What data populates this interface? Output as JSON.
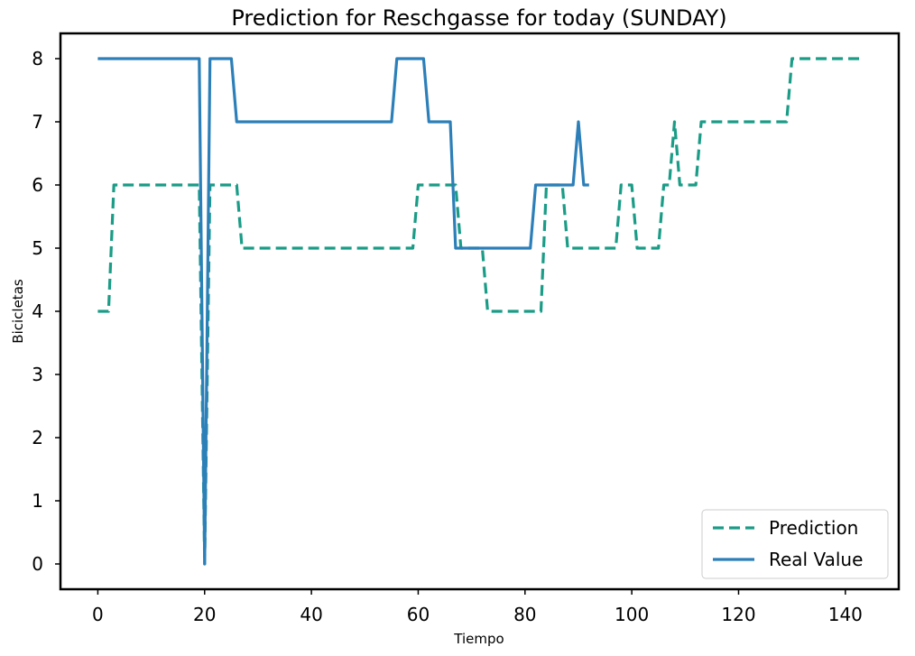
{
  "chart_data": {
    "type": "line",
    "title": "Prediction for Reschgasse for today (SUNDAY)",
    "xlabel": "Tiempo",
    "ylabel": "Bicicletas",
    "xlim": [
      -7,
      150
    ],
    "ylim": [
      -0.4,
      8.4
    ],
    "xticks": [
      0,
      20,
      40,
      60,
      80,
      100,
      120,
      140
    ],
    "yticks": [
      0,
      1,
      2,
      3,
      4,
      5,
      6,
      7,
      8
    ],
    "grid": false,
    "legend_position": "bottom-right",
    "series": [
      {
        "name": "Prediction",
        "color": "#1a9c86",
        "style": "dashed",
        "points": [
          [
            0,
            4
          ],
          [
            2,
            4
          ],
          [
            3,
            6
          ],
          [
            19,
            6
          ],
          [
            20,
            0
          ],
          [
            21,
            6
          ],
          [
            26,
            6
          ],
          [
            27,
            5
          ],
          [
            59,
            5
          ],
          [
            60,
            6
          ],
          [
            67,
            6
          ],
          [
            68,
            5
          ],
          [
            72,
            5
          ],
          [
            73,
            4
          ],
          [
            83,
            4
          ],
          [
            84,
            6
          ],
          [
            87,
            6
          ],
          [
            88,
            5
          ],
          [
            97,
            5
          ],
          [
            98,
            6
          ],
          [
            100,
            6
          ],
          [
            101,
            5
          ],
          [
            105,
            5
          ],
          [
            106,
            6
          ],
          [
            107,
            6
          ],
          [
            108,
            7
          ],
          [
            109,
            6
          ],
          [
            112,
            6
          ],
          [
            113,
            7
          ],
          [
            129,
            7
          ],
          [
            130,
            8
          ],
          [
            143,
            8
          ]
        ]
      },
      {
        "name": "Real Value",
        "color": "#2c7fb8",
        "style": "solid",
        "points": [
          [
            0,
            8
          ],
          [
            19,
            8
          ],
          [
            20,
            0
          ],
          [
            21,
            8
          ],
          [
            25,
            8
          ],
          [
            26,
            7
          ],
          [
            55,
            7
          ],
          [
            56,
            8
          ],
          [
            61,
            8
          ],
          [
            62,
            7
          ],
          [
            66,
            7
          ],
          [
            67,
            5
          ],
          [
            81,
            5
          ],
          [
            82,
            6
          ],
          [
            89,
            6
          ],
          [
            90,
            7
          ],
          [
            91,
            6
          ],
          [
            92,
            6
          ]
        ]
      }
    ]
  }
}
